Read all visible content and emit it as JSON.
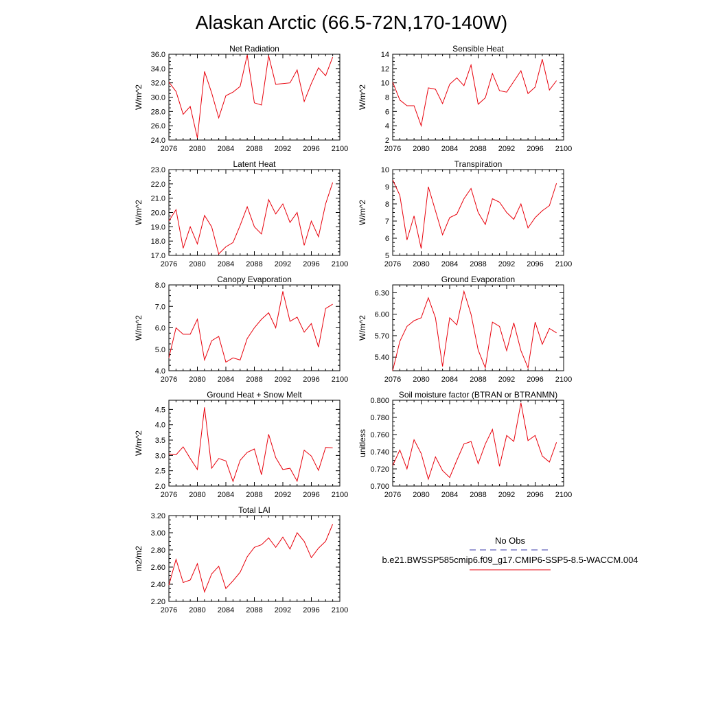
{
  "page": {
    "title": "Alaskan Arctic (66.5-72N,170-140W)"
  },
  "x_values": [
    2076,
    2077,
    2078,
    2079,
    2080,
    2081,
    2082,
    2083,
    2084,
    2085,
    2086,
    2087,
    2088,
    2089,
    2090,
    2091,
    2092,
    2093,
    2094,
    2095,
    2096,
    2097,
    2098,
    2099
  ],
  "chart_data": [
    {
      "type": "line",
      "title": "Net Radiation",
      "ylabel": "W/m^2",
      "xlim": [
        2076,
        2100
      ],
      "ylim": [
        24,
        36
      ],
      "xticks": [
        2076,
        2080,
        2084,
        2088,
        2092,
        2096,
        2100
      ],
      "yticks": [
        "24.0",
        "26.0",
        "28.0",
        "30.0",
        "32.0",
        "34.0",
        "36.0"
      ],
      "series": [
        {
          "values": [
            32.1,
            30.8,
            27.6,
            28.7,
            24.3,
            33.6,
            30.6,
            27.1,
            30.2,
            30.7,
            31.5,
            35.9,
            29.2,
            28.9,
            35.8,
            31.8,
            31.9,
            32.0,
            33.8,
            29.4,
            31.9,
            34.1,
            33.0,
            35.6
          ]
        }
      ]
    },
    {
      "type": "line",
      "title": "Sensible Heat",
      "ylabel": "W/m^2",
      "xlim": [
        2076,
        2100
      ],
      "ylim": [
        2,
        14
      ],
      "xticks": [
        2076,
        2080,
        2084,
        2088,
        2092,
        2096,
        2100
      ],
      "yticks": [
        "2",
        "4",
        "6",
        "8",
        "10",
        "12",
        "14"
      ],
      "series": [
        {
          "values": [
            10.1,
            7.6,
            6.8,
            6.8,
            4.0,
            9.3,
            9.1,
            7.1,
            9.8,
            10.7,
            9.6,
            12.5,
            7.0,
            7.9,
            11.3,
            8.9,
            8.7,
            10.2,
            11.7,
            8.5,
            9.4,
            13.3,
            9.0,
            10.3
          ]
        }
      ]
    },
    {
      "type": "line",
      "title": "Latent Heat",
      "ylabel": "W/m^2",
      "xlim": [
        2076,
        2100
      ],
      "ylim": [
        17,
        23
      ],
      "xticks": [
        2076,
        2080,
        2084,
        2088,
        2092,
        2096,
        2100
      ],
      "yticks": [
        "17.0",
        "18.0",
        "19.0",
        "20.0",
        "21.0",
        "22.0",
        "23.0"
      ],
      "series": [
        {
          "values": [
            19.4,
            20.2,
            17.5,
            19.0,
            17.8,
            19.8,
            19.0,
            17.1,
            17.6,
            17.9,
            19.1,
            20.4,
            19.0,
            18.5,
            20.9,
            19.9,
            20.6,
            19.3,
            20.0,
            17.7,
            19.4,
            18.3,
            20.6,
            22.1
          ]
        }
      ]
    },
    {
      "type": "line",
      "title": "Transpiration",
      "ylabel": "W/m^2",
      "xlim": [
        2076,
        2100
      ],
      "ylim": [
        5,
        10
      ],
      "xticks": [
        2076,
        2080,
        2084,
        2088,
        2092,
        2096,
        2100
      ],
      "yticks": [
        "5",
        "6",
        "7",
        "8",
        "9",
        "10"
      ],
      "series": [
        {
          "values": [
            9.4,
            8.5,
            5.9,
            7.3,
            5.4,
            9.0,
            7.6,
            6.2,
            7.2,
            7.4,
            8.3,
            8.9,
            7.5,
            6.8,
            8.3,
            8.1,
            7.5,
            7.1,
            8.0,
            6.6,
            7.2,
            7.6,
            7.9,
            9.2
          ]
        }
      ]
    },
    {
      "type": "line",
      "title": "Canopy Evaporation",
      "ylabel": "W/m^2",
      "xlim": [
        2076,
        2100
      ],
      "ylim": [
        4,
        8
      ],
      "xticks": [
        2076,
        2080,
        2084,
        2088,
        2092,
        2096,
        2100
      ],
      "yticks": [
        "4.0",
        "5.0",
        "6.0",
        "7.0",
        "8.0"
      ],
      "series": [
        {
          "values": [
            4.6,
            6.0,
            5.7,
            5.7,
            6.4,
            4.5,
            5.4,
            5.6,
            4.4,
            4.6,
            4.5,
            5.5,
            6.0,
            6.4,
            6.7,
            6.0,
            7.7,
            6.3,
            6.5,
            5.8,
            6.2,
            5.1,
            6.9,
            7.1
          ]
        }
      ]
    },
    {
      "type": "line",
      "title": "Ground Evaporation",
      "ylabel": "W/m^2",
      "xlim": [
        2076,
        2100
      ],
      "ylim": [
        5.21,
        6.41
      ],
      "xticks": [
        2076,
        2080,
        2084,
        2088,
        2092,
        2096,
        2100
      ],
      "yticks": [
        "5.40",
        "5.70",
        "6.00",
        "6.30"
      ],
      "ytick_values": [
        5.4,
        5.7,
        6.0,
        6.3
      ],
      "series": [
        {
          "values": [
            5.21,
            5.62,
            5.83,
            5.91,
            5.95,
            6.23,
            5.95,
            5.27,
            5.95,
            5.85,
            6.32,
            6.0,
            5.5,
            5.25,
            5.89,
            5.83,
            5.49,
            5.88,
            5.49,
            5.25,
            5.89,
            5.58,
            5.8,
            5.74
          ]
        }
      ]
    },
    {
      "type": "line",
      "title": "Ground Heat + Snow Melt",
      "ylabel": "W/m^2",
      "xlim": [
        2076,
        2100
      ],
      "ylim": [
        2.0,
        4.8
      ],
      "xticks": [
        2076,
        2080,
        2084,
        2088,
        2092,
        2096,
        2100
      ],
      "yticks": [
        "2.0",
        "2.5",
        "3.0",
        "3.5",
        "4.0",
        "4.5"
      ],
      "ytick_values": [
        2.0,
        2.5,
        3.0,
        3.5,
        4.0,
        4.5
      ],
      "series": [
        {
          "values": [
            3.05,
            3.02,
            3.28,
            2.9,
            2.54,
            4.57,
            2.58,
            2.9,
            2.82,
            2.15,
            2.84,
            3.1,
            3.21,
            2.37,
            3.69,
            2.93,
            2.54,
            2.58,
            2.16,
            3.17,
            2.98,
            2.51,
            3.26,
            3.25
          ]
        }
      ]
    },
    {
      "type": "line",
      "title": "Soil moisture factor (BTRAN or BTRANMN)",
      "ylabel": "unitless",
      "xlim": [
        2076,
        2100
      ],
      "ylim": [
        0.7,
        0.8
      ],
      "xticks": [
        2076,
        2080,
        2084,
        2088,
        2092,
        2096,
        2100
      ],
      "yticks": [
        "0.700",
        "0.720",
        "0.740",
        "0.760",
        "0.780",
        "0.800"
      ],
      "series": [
        {
          "values": [
            0.724,
            0.742,
            0.72,
            0.754,
            0.738,
            0.708,
            0.734,
            0.718,
            0.71,
            0.73,
            0.749,
            0.752,
            0.726,
            0.749,
            0.766,
            0.723,
            0.759,
            0.752,
            0.797,
            0.753,
            0.759,
            0.735,
            0.728,
            0.751
          ]
        }
      ]
    },
    {
      "type": "line",
      "title": "Total LAI",
      "ylabel": "m2/m2",
      "xlim": [
        2076,
        2100
      ],
      "ylim": [
        2.2,
        3.2
      ],
      "xticks": [
        2076,
        2080,
        2084,
        2088,
        2092,
        2096,
        2100
      ],
      "yticks": [
        "2.20",
        "2.40",
        "2.60",
        "2.80",
        "3.00",
        "3.20"
      ],
      "series": [
        {
          "values": [
            2.39,
            2.69,
            2.42,
            2.45,
            2.64,
            2.31,
            2.52,
            2.61,
            2.35,
            2.44,
            2.54,
            2.72,
            2.83,
            2.86,
            2.94,
            2.83,
            2.95,
            2.81,
            3.0,
            2.9,
            2.71,
            2.82,
            2.9,
            3.1
          ]
        }
      ]
    }
  ],
  "legend": {
    "obs_label": "No Obs",
    "obs_color": "#3a3aa8",
    "model_label": "b.e21.BWSSP585cmip6.f09_g17.CMIP6-SSP5-8.5-WACCM.004",
    "model_color": "#e8000b"
  }
}
